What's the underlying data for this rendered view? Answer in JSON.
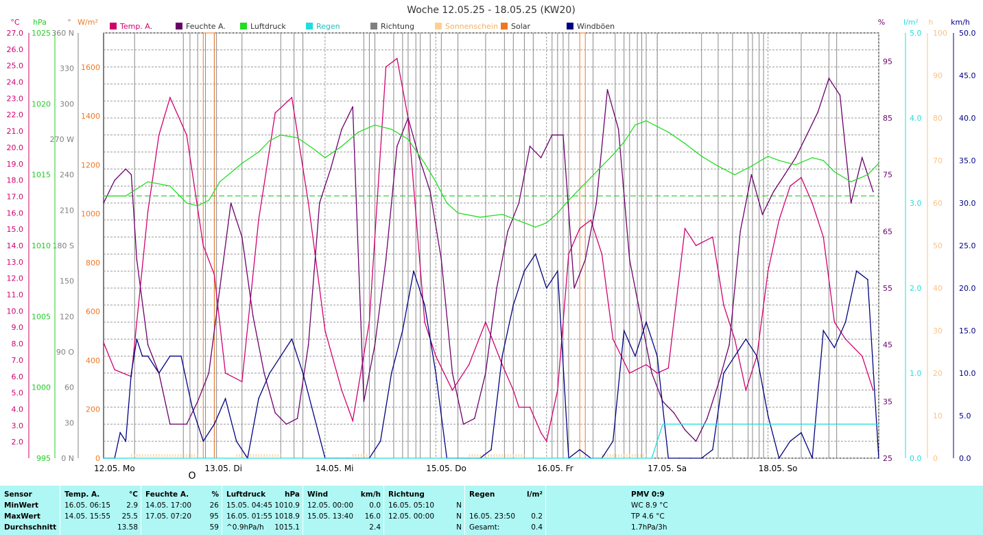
{
  "title": "Woche 12.05.25 - 18.05.25 (KW20)",
  "legend": [
    {
      "label": "Temp. A.",
      "color": "#d0006f"
    },
    {
      "label": "Feuchte A.",
      "color": "#6a006a"
    },
    {
      "label": "Luftdruck",
      "color": "#22dd22"
    },
    {
      "label": "Regen",
      "color": "#22dddd"
    },
    {
      "label": "Richtung",
      "color": "#808080"
    },
    {
      "label": "Sonnenschein",
      "color": "#ffd090"
    },
    {
      "label": "Solar",
      "color": "#ee7722"
    },
    {
      "label": "Windböen",
      "color": "#000080"
    }
  ],
  "axes": {
    "temp": {
      "unit": "°C",
      "color": "#d0006f",
      "ticks": [
        "27.0",
        "26.0",
        "25.0",
        "24.0",
        "23.0",
        "22.0",
        "21.0",
        "20.0",
        "19.0",
        "18.0",
        "17.0",
        "16.0",
        "15.0",
        "14.0",
        "13.0",
        "12.0",
        "11.0",
        "10.0",
        "9.0",
        "8.0",
        "7.0",
        "6.0",
        "5.0",
        "4.0",
        "3.0",
        "2.0"
      ]
    },
    "pressure": {
      "unit": "hPa",
      "color": "#22cc22",
      "ticks": [
        "1025",
        "1020",
        "1015",
        "1010",
        "1005",
        "1000",
        "995"
      ]
    },
    "direction": {
      "unit": "°",
      "color": "#808080",
      "ticks": [
        "360 N",
        "330",
        "300",
        "270 W",
        "240",
        "210",
        "180 S",
        "150",
        "120",
        "90 O",
        "60",
        "30",
        "0 N"
      ]
    },
    "solar": {
      "unit": "W/m²",
      "color": "#ee7722",
      "ticks": [
        "1600",
        "1400",
        "1200",
        "1000",
        "800",
        "600",
        "400",
        "200",
        "0"
      ]
    },
    "humidity": {
      "unit": "%",
      "color": "#6a006a",
      "ticks": [
        "95",
        "85",
        "75",
        "65",
        "55",
        "45",
        "35",
        "25"
      ]
    },
    "rain": {
      "unit": "l/m²",
      "color": "#22dddd",
      "ticks": [
        "5.0",
        "4.0",
        "3.0",
        "2.0",
        "1.0",
        "0.0"
      ]
    },
    "sunshine": {
      "unit": "h",
      "color": "#ffc080",
      "ticks": [
        "100",
        "90",
        "80",
        "70",
        "60",
        "50",
        "40",
        "30",
        "20",
        "10",
        "0"
      ]
    },
    "wind": {
      "unit": "km/h",
      "color": "#000080",
      "ticks": [
        "50.0",
        "45.0",
        "40.0",
        "35.0",
        "30.0",
        "25.0",
        "20.0",
        "15.0",
        "10.0",
        "5.0",
        "0.0"
      ]
    }
  },
  "days": [
    "12.05. Mo",
    "13.05. Di",
    "14.05. Mi",
    "15.05. Do",
    "16.05. Fr",
    "17.05. Sa",
    "18.05. So"
  ],
  "marker_glyph": "O",
  "chart_data": {
    "type": "line",
    "x_start": "12.05.25",
    "x_end": "18.05.25",
    "days": [
      "12.05. Mo",
      "13.05. Di",
      "14.05. Mi",
      "15.05. Do",
      "16.05. Fr",
      "17.05. Sa",
      "18.05. So"
    ],
    "series": [
      {
        "name": "Temp. A.",
        "unit": "°C",
        "color": "#d0006f",
        "x": [
          0,
          0.1,
          0.25,
          0.4,
          0.5,
          0.6,
          0.75,
          0.9,
          1.0,
          1.1,
          1.25,
          1.4,
          1.55,
          1.7,
          1.85,
          2.0,
          2.15,
          2.25,
          2.4,
          2.55,
          2.65,
          2.75,
          2.9,
          3.0,
          3.15,
          3.3,
          3.45,
          3.6,
          3.7,
          3.75,
          3.85,
          3.95,
          4.0,
          4.1,
          4.2,
          4.3,
          4.4,
          4.5,
          4.6,
          4.75,
          4.9,
          5.0,
          5.1,
          5.25,
          5.35,
          5.5,
          5.6,
          5.7,
          5.8,
          5.9,
          6.0,
          6.1,
          6.2,
          6.3,
          6.4,
          6.5,
          6.6,
          6.7,
          6.85,
          6.95
        ],
        "values": [
          8.8,
          7.2,
          6.8,
          16.5,
          21,
          23.2,
          21,
          14.5,
          12.8,
          7,
          6.5,
          16,
          22.3,
          23.2,
          17,
          9.5,
          6,
          4.2,
          10,
          25,
          25.5,
          22,
          10,
          8,
          6,
          7.5,
          10,
          7.5,
          6,
          5,
          5,
          3.5,
          3,
          6,
          14,
          15.5,
          16,
          14,
          9,
          7,
          7.5,
          7,
          7.3,
          15.5,
          14.5,
          15,
          11,
          9,
          6,
          8,
          13,
          16,
          18,
          18.5,
          17,
          15,
          10,
          9,
          8,
          6
        ]
      },
      {
        "name": "Feuchte A.",
        "unit": "%",
        "color": "#6a006a",
        "x": [
          0,
          0.1,
          0.2,
          0.25,
          0.3,
          0.4,
          0.5,
          0.6,
          0.75,
          0.85,
          0.95,
          1.05,
          1.15,
          1.25,
          1.35,
          1.45,
          1.55,
          1.65,
          1.75,
          1.85,
          1.95,
          2.05,
          2.15,
          2.25,
          2.35,
          2.45,
          2.55,
          2.65,
          2.75,
          2.85,
          2.95,
          3.05,
          3.15,
          3.25,
          3.35,
          3.45,
          3.55,
          3.65,
          3.75,
          3.85,
          3.95,
          4.05,
          4.15,
          4.25,
          4.35,
          4.45,
          4.55,
          4.65,
          4.75,
          4.85,
          4.95,
          5.05,
          5.15,
          5.25,
          5.35,
          5.45,
          5.55,
          5.65,
          5.75,
          5.85,
          5.95,
          6.05,
          6.15,
          6.25,
          6.35,
          6.45,
          6.55,
          6.65,
          6.75,
          6.85,
          6.95
        ],
        "values": [
          70,
          74,
          76,
          75,
          60,
          45,
          40,
          31,
          31,
          35,
          40,
          55,
          70,
          64,
          50,
          40,
          33,
          31,
          32,
          45,
          70,
          76,
          83,
          87,
          35,
          45,
          60,
          80,
          85,
          78,
          72,
          60,
          40,
          31,
          32,
          40,
          55,
          65,
          70,
          80,
          78,
          82,
          82,
          55,
          60,
          70,
          90,
          83,
          60,
          50,
          40,
          35,
          33,
          30,
          28,
          32,
          38,
          45,
          65,
          75,
          68,
          72,
          75,
          78,
          82,
          86,
          92,
          89,
          70,
          78,
          72
        ]
      },
      {
        "name": "Luftdruck",
        "unit": "hPa",
        "color": "#22dd22",
        "x": [
          0,
          0.2,
          0.4,
          0.6,
          0.75,
          0.85,
          0.95,
          1.05,
          1.25,
          1.4,
          1.5,
          1.6,
          1.75,
          1.9,
          2.0,
          2.15,
          2.3,
          2.45,
          2.6,
          2.75,
          2.9,
          3.0,
          3.1,
          3.2,
          3.4,
          3.6,
          3.8,
          3.9,
          4.0,
          4.1,
          4.2,
          4.3,
          4.4,
          4.5,
          4.6,
          4.7,
          4.8,
          4.9,
          5.0,
          5.1,
          5.25,
          5.4,
          5.55,
          5.7,
          5.85,
          6.0,
          6.1,
          6.25,
          6.4,
          6.5,
          6.6,
          6.75,
          6.9,
          7.0
        ],
        "values": [
          1013.5,
          1013.5,
          1014.5,
          1014.2,
          1013.0,
          1012.8,
          1013.2,
          1014.5,
          1015.8,
          1016.6,
          1017.4,
          1017.8,
          1017.6,
          1016.8,
          1016.2,
          1017.0,
          1018.0,
          1018.5,
          1018.2,
          1017.5,
          1015.8,
          1014.5,
          1013.0,
          1012.3,
          1012.0,
          1012.2,
          1011.6,
          1011.3,
          1011.6,
          1012.3,
          1013.2,
          1014.0,
          1014.8,
          1015.6,
          1016.4,
          1017.3,
          1018.5,
          1018.8,
          1018.4,
          1018.0,
          1017.2,
          1016.3,
          1015.6,
          1015.0,
          1015.6,
          1016.3,
          1016.0,
          1015.7,
          1016.2,
          1016.0,
          1015.2,
          1014.5,
          1015.0,
          1015.8
        ]
      },
      {
        "name": "Windböen",
        "unit": "km/h",
        "color": "#000080",
        "x": [
          0,
          0.1,
          0.15,
          0.2,
          0.25,
          0.3,
          0.35,
          0.4,
          0.5,
          0.6,
          0.7,
          0.8,
          0.85,
          0.9,
          1.0,
          1.1,
          1.2,
          1.3,
          1.4,
          1.5,
          1.6,
          1.7,
          1.8,
          1.9,
          2.0,
          2.1,
          2.2,
          2.3,
          2.4,
          2.5,
          2.6,
          2.7,
          2.8,
          2.9,
          3.0,
          3.1,
          3.2,
          3.3,
          3.4,
          3.5,
          3.6,
          3.7,
          3.8,
          3.9,
          4.0,
          4.1,
          4.2,
          4.3,
          4.4,
          4.5,
          4.6,
          4.7,
          4.8,
          4.9,
          5.0,
          5.1,
          5.2,
          5.3,
          5.4,
          5.5,
          5.6,
          5.7,
          5.8,
          5.9,
          6.0,
          6.1,
          6.2,
          6.3,
          6.4,
          6.5,
          6.6,
          6.7,
          6.8,
          6.9,
          7.0
        ],
        "values": [
          0,
          0,
          3,
          2,
          10,
          14,
          12,
          12,
          10,
          12,
          12,
          6,
          4,
          2,
          4,
          7,
          2,
          0,
          7,
          10,
          12,
          14,
          10,
          5,
          0,
          0,
          0,
          0,
          0,
          2,
          10,
          15,
          22,
          18,
          10,
          0,
          0,
          0,
          0,
          1,
          12,
          18,
          22,
          24,
          20,
          22,
          0,
          1,
          0,
          0,
          2,
          15,
          12,
          16,
          12,
          0,
          0,
          0,
          0,
          1,
          10,
          12,
          14,
          12,
          5,
          0,
          2,
          3,
          0,
          15,
          13,
          16,
          22,
          21,
          0
        ]
      },
      {
        "name": "Regen",
        "unit": "l/m²",
        "color": "#22dddd",
        "x": [
          0,
          4.95,
          5.0,
          5.05,
          7.0
        ],
        "values": [
          0,
          0,
          0.2,
          0.4,
          0.4
        ]
      }
    ]
  },
  "stats": {
    "sensor": {
      "header": "Sensor",
      "rows": [
        "MinWert",
        "MaxWert",
        "Durchschnitt"
      ]
    },
    "temp": {
      "header": "Temp. A.",
      "unit": "°C",
      "rows": [
        {
          "time": "16.05.  06:15",
          "value": "2.9"
        },
        {
          "time": "14.05.  15:55",
          "value": "25.5"
        },
        {
          "time": "",
          "value": "13.58"
        }
      ]
    },
    "feuchte": {
      "header": "Feuchte A.",
      "unit": "%",
      "rows": [
        {
          "time": "14.05.  17:00",
          "value": "26"
        },
        {
          "time": "17.05.  07:20",
          "value": "95"
        },
        {
          "time": "",
          "value": "59"
        }
      ]
    },
    "luftdruck": {
      "header": "Luftdruck",
      "unit": "hPa",
      "rows": [
        {
          "time": "15.05.  04:45",
          "value": "1010.9"
        },
        {
          "time": "16.05.  01:55",
          "value": "1018.9"
        },
        {
          "time": "^0.9hPa/h",
          "value": "1015.1"
        }
      ]
    },
    "wind": {
      "header": "Wind",
      "unit": "km/h",
      "rows": [
        {
          "time": "12.05.  00:00",
          "value": "0.0"
        },
        {
          "time": "15.05.  13:40",
          "value": "16.0"
        },
        {
          "time": "",
          "value": "2.4"
        }
      ]
    },
    "richtung": {
      "header": "Richtung",
      "rows": [
        {
          "time": "16.05.  05:10",
          "value": "N"
        },
        {
          "time": "12.05.  00:00",
          "value": "N"
        },
        {
          "time": "",
          "value": "N"
        }
      ]
    },
    "regen": {
      "header": "Regen",
      "unit": "l/m²",
      "rows": [
        {
          "time": "",
          "value": ""
        },
        {
          "time": "16.05.  23:50",
          "value": "0.2"
        },
        {
          "time": "Gesamt:",
          "value": "0.4"
        }
      ]
    },
    "pmv": {
      "header": "PMV 0:9",
      "rows": [
        "WC 8.9 °C",
        "TP 4.6 °C",
        "1.7hPa/3h"
      ]
    }
  }
}
